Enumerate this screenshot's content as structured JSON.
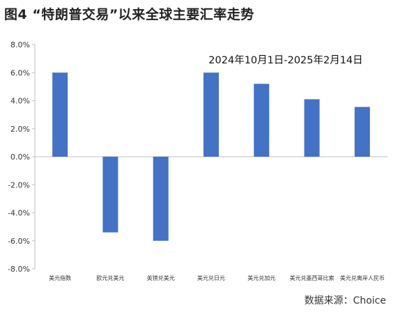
{
  "figure": {
    "title": "图4 “特朗普交易”以来全球主要汇率走势",
    "source": "数据来源：Choice"
  },
  "chart_data": {
    "type": "bar",
    "subtitle": "2024年10月1日-2025年2月14日",
    "categories": [
      "美元指数",
      "欧元兑美元",
      "英镑兑美元",
      "美元兑日元",
      "美元兑加元",
      "美元兑墨西哥比索",
      "美元兑离岸人民币"
    ],
    "values": [
      6.0,
      -5.4,
      -6.0,
      6.0,
      5.2,
      4.1,
      3.55
    ],
    "ylim": [
      -8.0,
      8.0
    ],
    "yticks": [
      8.0,
      6.0,
      4.0,
      2.0,
      0.0,
      -2.0,
      -4.0,
      -6.0,
      -8.0
    ],
    "ytick_labels": [
      "8.0%",
      "6.0%",
      "4.0%",
      "2.0%",
      "0.0%",
      "-2.0%",
      "-4.0%",
      "-6.0%",
      "-8.0%"
    ],
    "xlabel": "",
    "ylabel": "",
    "grid": false,
    "bar_color": "#4472C4",
    "axis_color": "#bfbfbf"
  }
}
